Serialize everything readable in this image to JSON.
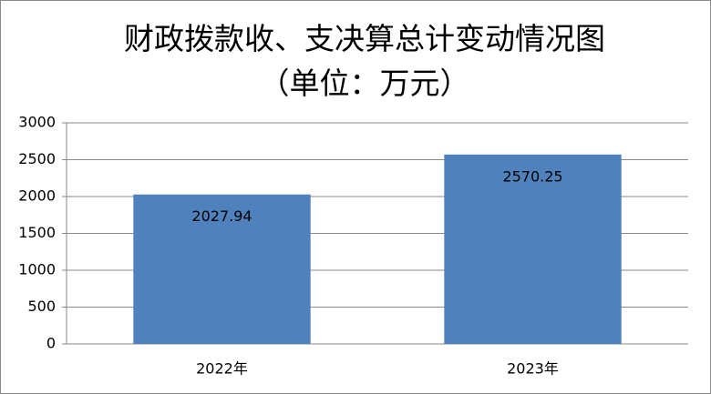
{
  "chart_data": {
    "type": "bar",
    "title": "财政拨款收、支决算总计变动情况图",
    "subtitle": "（单位：万元）",
    "categories": [
      "2022年",
      "2023年"
    ],
    "values": [
      2027.94,
      2570.25
    ],
    "color": "#4f81bd",
    "ylim": [
      0,
      3000
    ],
    "yticks": [
      0,
      500,
      1000,
      1500,
      2000,
      2500,
      3000
    ],
    "grid": true
  }
}
